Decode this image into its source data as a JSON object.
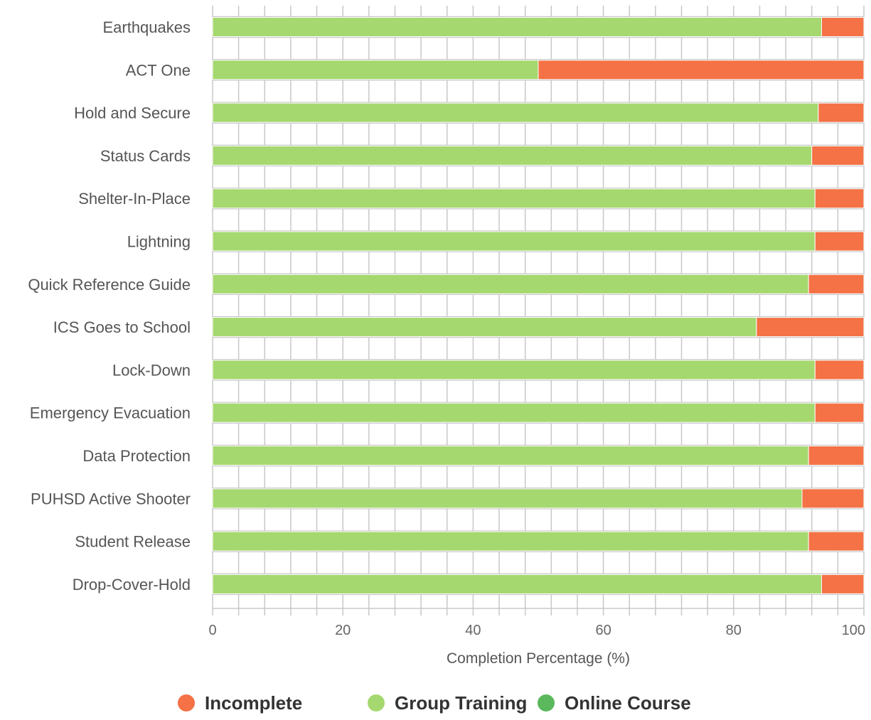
{
  "chart_data": {
    "type": "bar",
    "orientation": "horizontal",
    "stacked": true,
    "categories": [
      "Earthquakes",
      "ACT One",
      "Hold and Secure",
      "Status Cards",
      "Shelter-In-Place",
      "Lightning",
      "Quick Reference Guide",
      "ICS Goes to School",
      "Lock-Down",
      "Emergency Evacuation",
      "Data Protection",
      "PUHSD Active Shooter",
      "Student Release",
      "Drop-Cover-Hold"
    ],
    "series": [
      {
        "name": "Online Course",
        "color": "#5cb85c",
        "values": [
          0,
          0,
          0,
          0,
          0,
          0,
          0,
          0,
          0,
          0,
          0,
          0,
          0,
          0
        ]
      },
      {
        "name": "Group Training",
        "color": "#a5d86e",
        "values": [
          93.5,
          50,
          93,
          92,
          92.5,
          92.5,
          91.5,
          83.5,
          92.5,
          92.5,
          91.5,
          90.5,
          91.5,
          93.5
        ]
      },
      {
        "name": "Incomplete",
        "color": "#f47245",
        "values": [
          6.5,
          50,
          7,
          8,
          7.5,
          7.5,
          8.5,
          16.5,
          7.5,
          7.5,
          8.5,
          9.5,
          8.5,
          6.5
        ]
      }
    ],
    "xlabel": "Completion Percentage (%)",
    "ylabel": "",
    "xlim": [
      0,
      100
    ],
    "xticks": [
      0,
      20,
      40,
      60,
      80,
      100
    ],
    "grid": true,
    "legend": {
      "position": "bottom-center",
      "items": [
        {
          "label": "Incomplete",
          "color": "#f47245"
        },
        {
          "label": "Group Training",
          "color": "#a5d86e"
        },
        {
          "label": "Online Course",
          "color": "#5cb85c"
        }
      ]
    }
  }
}
